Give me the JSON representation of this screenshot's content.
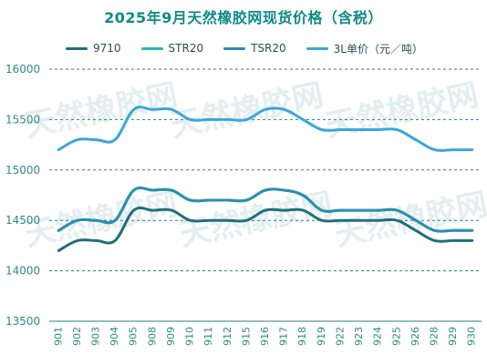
{
  "title": "2025年9月天然橡胶网现货价格（含税）",
  "watermark": "天然橡胶网",
  "chart_data": {
    "type": "line",
    "title": "2025年9月天然橡胶网现货价格（含税）",
    "x": [
      "901",
      "902",
      "903",
      "904",
      "905",
      "908",
      "909",
      "910",
      "911",
      "912",
      "915",
      "916",
      "917",
      "918",
      "919",
      "922",
      "923",
      "924",
      "925",
      "926",
      "928",
      "929",
      "930"
    ],
    "ylim": [
      13500,
      16000
    ],
    "yticks": [
      13500,
      14000,
      14500,
      15000,
      15500,
      16000
    ],
    "grid": "horizontal-dashed",
    "legend_position": "top",
    "series": [
      {
        "name": "9710",
        "color": "#1f6f7d",
        "values": [
          14200,
          14300,
          14300,
          14300,
          14600,
          14600,
          14600,
          14500,
          14500,
          14500,
          14500,
          14600,
          14600,
          14600,
          14500,
          14500,
          14500,
          14500,
          14500,
          14400,
          14300,
          14300,
          14300
        ]
      },
      {
        "name": "STR20",
        "color": "#2bb3b6",
        "values": [
          14400,
          14500,
          14500,
          14500,
          14800,
          14800,
          14800,
          14700,
          14700,
          14700,
          14700,
          14800,
          14800,
          14750,
          14600,
          14600,
          14600,
          14600,
          14600,
          14500,
          14400,
          14400,
          14400
        ]
      },
      {
        "name": "TSR20",
        "color": "#2a8fb0",
        "values": [
          14400,
          14500,
          14500,
          14500,
          14800,
          14800,
          14800,
          14700,
          14700,
          14700,
          14700,
          14800,
          14800,
          14750,
          14600,
          14600,
          14600,
          14600,
          14600,
          14500,
          14400,
          14400,
          14400
        ]
      },
      {
        "name": "3L单价（元／吨）",
        "color": "#3aa6dc",
        "values": [
          15200,
          15300,
          15300,
          15300,
          15600,
          15600,
          15600,
          15500,
          15500,
          15500,
          15500,
          15600,
          15600,
          15500,
          15400,
          15400,
          15400,
          15400,
          15400,
          15300,
          15200,
          15200,
          15200
        ]
      }
    ]
  }
}
